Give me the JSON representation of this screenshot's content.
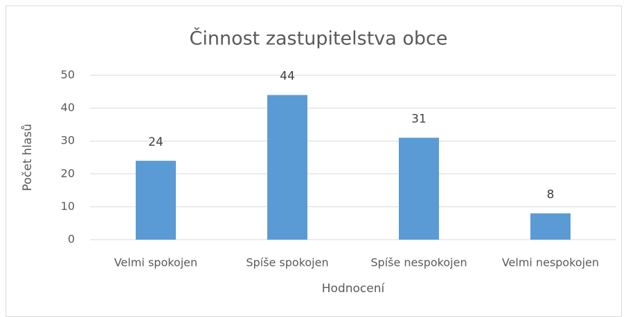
{
  "chart_data": {
    "type": "bar",
    "title": "Činnost zastupitelstva obce",
    "categories": [
      "Velmi spokojen",
      "Spíše spokojen",
      "Spíše nespokojen",
      "Velmi nespokojen"
    ],
    "values": [
      24,
      44,
      31,
      8
    ],
    "color": "#5b9bd5",
    "xlabel": "Hodnocení",
    "ylabel": "Počet hlasů",
    "ylim": [
      0,
      50
    ],
    "yticks": [
      0,
      10,
      20,
      30,
      40,
      50
    ],
    "grid": true
  }
}
